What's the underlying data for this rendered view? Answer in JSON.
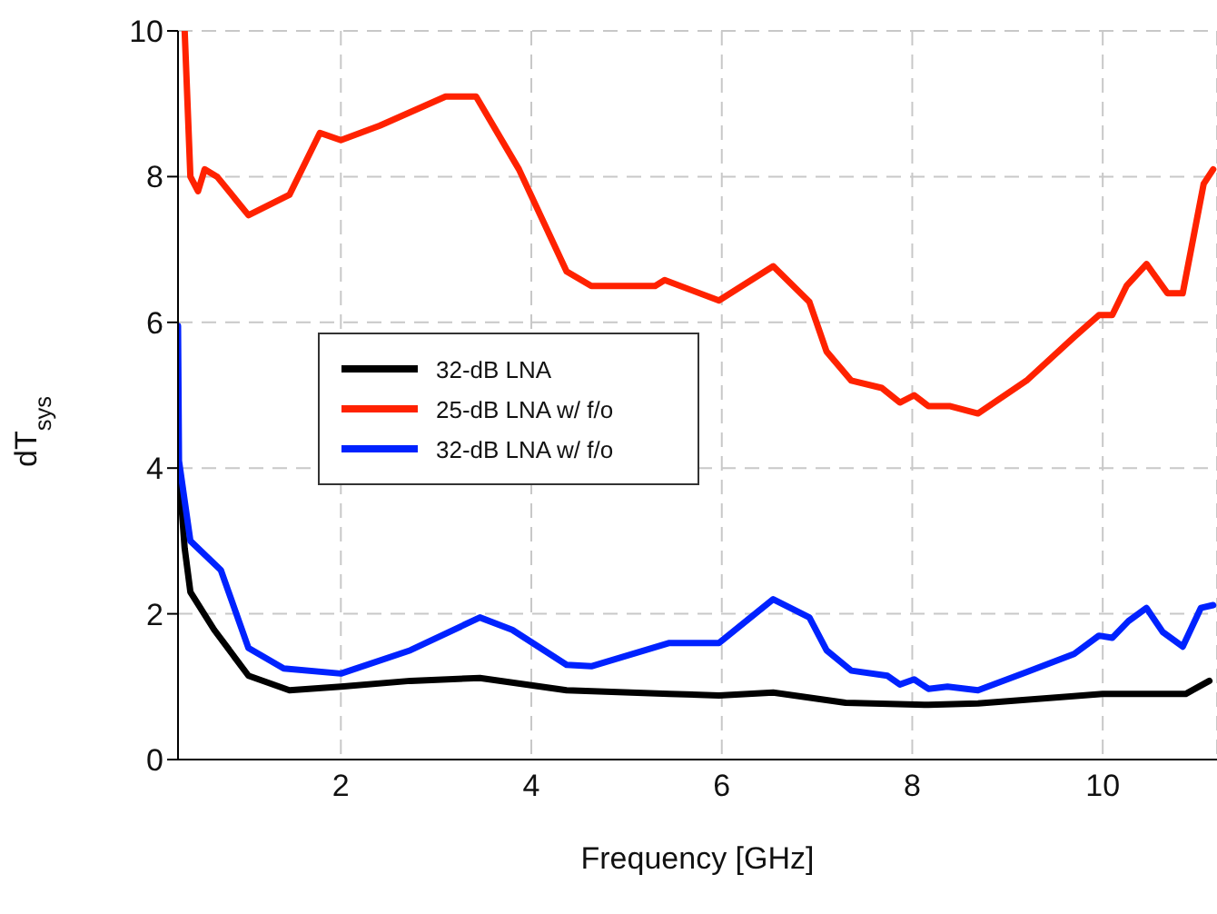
{
  "chart_data": {
    "type": "line",
    "xlabel": "Frequency [GHz]",
    "ylabel": "dT$_{sys}$",
    "xlim": [
      0.29,
      11.2
    ],
    "ylim": [
      0,
      10
    ],
    "xticks": [
      2,
      4,
      6,
      8,
      10
    ],
    "yticks": [
      0,
      2,
      4,
      6,
      8,
      10
    ],
    "grid": true,
    "legend": "left",
    "line_style": "solid",
    "marker": "none",
    "series": [
      {
        "name": "32-dB LNA",
        "color": "#000000",
        "x": [
          0.3,
          0.36,
          0.42,
          0.67,
          1.03,
          1.46,
          2.0,
          2.73,
          3.46,
          4.37,
          5.45,
          5.97,
          6.54,
          7.3,
          8.17,
          8.69,
          10.0,
          10.87,
          11.12
        ],
        "values": [
          3.95,
          2.9,
          2.3,
          1.78,
          1.15,
          0.95,
          1.0,
          1.08,
          1.12,
          0.95,
          0.9,
          0.88,
          0.92,
          0.78,
          0.75,
          0.77,
          0.9,
          0.9,
          1.08
        ]
      },
      {
        "name": "25-dB LNA w/ f/o",
        "color": "#ff2200",
        "x": [
          0.36,
          0.42,
          0.5,
          0.57,
          0.7,
          1.03,
          1.46,
          1.78,
          2.0,
          2.41,
          3.1,
          3.42,
          3.87,
          4.37,
          4.63,
          5.3,
          5.4,
          5.97,
          6.54,
          6.92,
          7.1,
          7.36,
          7.68,
          7.87,
          8.02,
          8.17,
          8.4,
          8.69,
          9.2,
          9.7,
          9.96,
          10.1,
          10.25,
          10.46,
          10.68,
          10.84,
          11.06,
          11.16
        ],
        "values": [
          10.0,
          8.0,
          7.8,
          8.1,
          8.0,
          7.47,
          7.75,
          8.6,
          8.5,
          8.7,
          9.1,
          9.1,
          8.1,
          6.7,
          6.5,
          6.5,
          6.58,
          6.3,
          6.77,
          6.28,
          5.6,
          5.2,
          5.1,
          4.9,
          5.0,
          4.85,
          4.85,
          4.75,
          5.2,
          5.8,
          6.1,
          6.1,
          6.5,
          6.8,
          6.4,
          6.4,
          7.9,
          8.1
        ]
      },
      {
        "name": "32-dB LNA w/ f/o",
        "color": "#0022ff",
        "x": [
          0.29,
          0.3,
          0.42,
          0.74,
          1.03,
          1.4,
          2.0,
          2.73,
          3.46,
          3.8,
          4.37,
          4.63,
          5.45,
          5.97,
          6.54,
          6.92,
          7.1,
          7.36,
          7.74,
          7.87,
          8.02,
          8.17,
          8.37,
          8.69,
          9.2,
          9.7,
          9.96,
          10.1,
          10.27,
          10.46,
          10.63,
          10.84,
          11.03,
          11.16
        ],
        "values": [
          5.95,
          4.1,
          3.0,
          2.6,
          1.53,
          1.25,
          1.18,
          1.5,
          1.95,
          1.78,
          1.3,
          1.28,
          1.6,
          1.6,
          2.2,
          1.95,
          1.5,
          1.22,
          1.15,
          1.03,
          1.1,
          0.97,
          1.0,
          0.95,
          1.2,
          1.45,
          1.7,
          1.67,
          1.9,
          2.08,
          1.75,
          1.55,
          2.08,
          2.12
        ]
      }
    ]
  }
}
